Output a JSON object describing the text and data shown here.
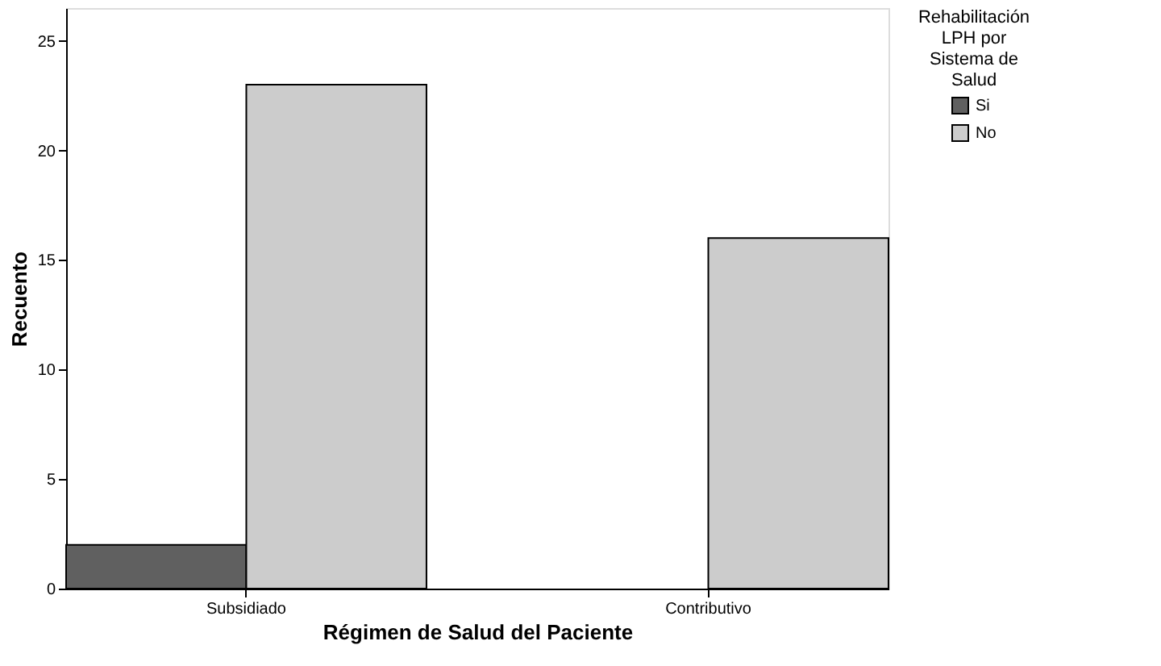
{
  "chart_data": {
    "type": "bar",
    "xlabel": "Régimen de Salud del Paciente",
    "ylabel": "Recuento",
    "legend_title": "Rehabilitación LPH por Sistema de Salud",
    "categories": [
      "Subsidiado",
      "Contributivo"
    ],
    "series": [
      {
        "name": "Si",
        "color": "#606060",
        "values": [
          2,
          null
        ]
      },
      {
        "name": "No",
        "color": "#cccccc",
        "values": [
          23,
          16
        ]
      }
    ],
    "ylim": [
      0,
      26.5
    ],
    "yticks": [
      0,
      5,
      10,
      15,
      20,
      25
    ],
    "grid": false,
    "legend": "top right"
  }
}
